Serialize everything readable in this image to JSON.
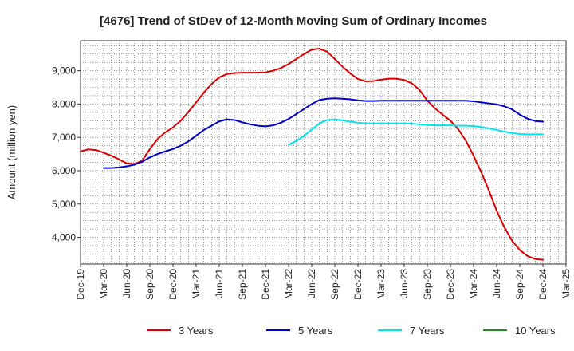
{
  "chart_data": {
    "type": "line",
    "title": "[4676]  Trend of StDev of 12-Month Moving Sum of Ordinary Incomes",
    "ylabel": "Amount (million yen)",
    "xlabel": "",
    "ylim": [
      3200,
      9900
    ],
    "x_range": [
      "2019-12",
      "2025-03"
    ],
    "x_ticks": [
      "Dec-19",
      "Mar-20",
      "Jun-20",
      "Sep-20",
      "Dec-20",
      "Mar-21",
      "Jun-21",
      "Sep-21",
      "Dec-21",
      "Mar-22",
      "Jun-22",
      "Sep-22",
      "Dec-22",
      "Mar-23",
      "Jun-23",
      "Sep-23",
      "Dec-23",
      "Mar-24",
      "Jun-24",
      "Sep-24",
      "Dec-24",
      "Mar-25"
    ],
    "y_ticks": [
      4000,
      5000,
      6000,
      7000,
      8000,
      9000
    ],
    "y_tick_labels": [
      "4,000",
      "5,000",
      "6,000",
      "7,000",
      "8,000",
      "9,000"
    ],
    "grid": true,
    "legend_position": "bottom",
    "series": [
      {
        "name": "3 Years",
        "color": "#dd0000",
        "points": [
          [
            "2019-12",
            6580
          ],
          [
            "2020-01",
            6640
          ],
          [
            "2020-02",
            6620
          ],
          [
            "2020-03",
            6540
          ],
          [
            "2020-04",
            6450
          ],
          [
            "2020-05",
            6340
          ],
          [
            "2020-06",
            6220
          ],
          [
            "2020-07",
            6200
          ],
          [
            "2020-08",
            6300
          ],
          [
            "2020-09",
            6650
          ],
          [
            "2020-10",
            6950
          ],
          [
            "2020-11",
            7150
          ],
          [
            "2020-12",
            7300
          ],
          [
            "2021-01",
            7500
          ],
          [
            "2021-02",
            7760
          ],
          [
            "2021-03",
            8050
          ],
          [
            "2021-04",
            8340
          ],
          [
            "2021-05",
            8600
          ],
          [
            "2021-06",
            8800
          ],
          [
            "2021-07",
            8900
          ],
          [
            "2021-08",
            8930
          ],
          [
            "2021-09",
            8940
          ],
          [
            "2021-10",
            8940
          ],
          [
            "2021-11",
            8940
          ],
          [
            "2021-12",
            8950
          ],
          [
            "2022-01",
            9000
          ],
          [
            "2022-02",
            9080
          ],
          [
            "2022-03",
            9200
          ],
          [
            "2022-04",
            9350
          ],
          [
            "2022-05",
            9500
          ],
          [
            "2022-06",
            9630
          ],
          [
            "2022-07",
            9660
          ],
          [
            "2022-08",
            9570
          ],
          [
            "2022-09",
            9350
          ],
          [
            "2022-10",
            9120
          ],
          [
            "2022-11",
            8920
          ],
          [
            "2022-12",
            8750
          ],
          [
            "2023-01",
            8680
          ],
          [
            "2023-02",
            8690
          ],
          [
            "2023-03",
            8730
          ],
          [
            "2023-04",
            8760
          ],
          [
            "2023-05",
            8760
          ],
          [
            "2023-06",
            8720
          ],
          [
            "2023-07",
            8620
          ],
          [
            "2023-08",
            8420
          ],
          [
            "2023-09",
            8100
          ],
          [
            "2023-10",
            7870
          ],
          [
            "2023-11",
            7680
          ],
          [
            "2023-12",
            7500
          ],
          [
            "2024-01",
            7250
          ],
          [
            "2024-02",
            6900
          ],
          [
            "2024-03",
            6450
          ],
          [
            "2024-04",
            5950
          ],
          [
            "2024-05",
            5400
          ],
          [
            "2024-06",
            4800
          ],
          [
            "2024-07",
            4300
          ],
          [
            "2024-08",
            3900
          ],
          [
            "2024-09",
            3620
          ],
          [
            "2024-10",
            3440
          ],
          [
            "2024-11",
            3350
          ],
          [
            "2024-12",
            3330
          ]
        ]
      },
      {
        "name": "5 Years",
        "color": "#0000cc",
        "points": [
          [
            "2020-03",
            6080
          ],
          [
            "2020-04",
            6080
          ],
          [
            "2020-05",
            6100
          ],
          [
            "2020-06",
            6130
          ],
          [
            "2020-07",
            6180
          ],
          [
            "2020-08",
            6270
          ],
          [
            "2020-09",
            6400
          ],
          [
            "2020-10",
            6500
          ],
          [
            "2020-11",
            6580
          ],
          [
            "2020-12",
            6650
          ],
          [
            "2021-01",
            6750
          ],
          [
            "2021-02",
            6880
          ],
          [
            "2021-03",
            7050
          ],
          [
            "2021-04",
            7220
          ],
          [
            "2021-05",
            7350
          ],
          [
            "2021-06",
            7480
          ],
          [
            "2021-07",
            7540
          ],
          [
            "2021-08",
            7520
          ],
          [
            "2021-09",
            7450
          ],
          [
            "2021-10",
            7390
          ],
          [
            "2021-11",
            7350
          ],
          [
            "2021-12",
            7330
          ],
          [
            "2022-01",
            7360
          ],
          [
            "2022-02",
            7440
          ],
          [
            "2022-03",
            7550
          ],
          [
            "2022-04",
            7700
          ],
          [
            "2022-05",
            7850
          ],
          [
            "2022-06",
            8000
          ],
          [
            "2022-07",
            8120
          ],
          [
            "2022-08",
            8160
          ],
          [
            "2022-09",
            8170
          ],
          [
            "2022-10",
            8160
          ],
          [
            "2022-11",
            8140
          ],
          [
            "2022-12",
            8110
          ],
          [
            "2023-01",
            8090
          ],
          [
            "2023-02",
            8090
          ],
          [
            "2023-03",
            8100
          ],
          [
            "2023-04",
            8100
          ],
          [
            "2023-05",
            8100
          ],
          [
            "2023-06",
            8100
          ],
          [
            "2023-07",
            8100
          ],
          [
            "2023-08",
            8100
          ],
          [
            "2023-09",
            8100
          ],
          [
            "2023-10",
            8100
          ],
          [
            "2023-11",
            8100
          ],
          [
            "2023-12",
            8100
          ],
          [
            "2024-01",
            8100
          ],
          [
            "2024-02",
            8100
          ],
          [
            "2024-03",
            8080
          ],
          [
            "2024-04",
            8050
          ],
          [
            "2024-05",
            8020
          ],
          [
            "2024-06",
            7990
          ],
          [
            "2024-07",
            7930
          ],
          [
            "2024-08",
            7840
          ],
          [
            "2024-09",
            7680
          ],
          [
            "2024-10",
            7560
          ],
          [
            "2024-11",
            7490
          ],
          [
            "2024-12",
            7470
          ]
        ]
      },
      {
        "name": "7 Years",
        "color": "#00e5ee",
        "points": [
          [
            "2022-03",
            6780
          ],
          [
            "2022-04",
            6890
          ],
          [
            "2022-05",
            7050
          ],
          [
            "2022-06",
            7230
          ],
          [
            "2022-07",
            7420
          ],
          [
            "2022-08",
            7520
          ],
          [
            "2022-09",
            7540
          ],
          [
            "2022-10",
            7510
          ],
          [
            "2022-11",
            7470
          ],
          [
            "2022-12",
            7440
          ],
          [
            "2023-01",
            7420
          ],
          [
            "2023-02",
            7420
          ],
          [
            "2023-03",
            7420
          ],
          [
            "2023-04",
            7420
          ],
          [
            "2023-05",
            7420
          ],
          [
            "2023-06",
            7420
          ],
          [
            "2023-07",
            7410
          ],
          [
            "2023-08",
            7390
          ],
          [
            "2023-09",
            7370
          ],
          [
            "2023-10",
            7360
          ],
          [
            "2023-11",
            7360
          ],
          [
            "2023-12",
            7360
          ],
          [
            "2024-01",
            7350
          ],
          [
            "2024-02",
            7350
          ],
          [
            "2024-03",
            7340
          ],
          [
            "2024-04",
            7310
          ],
          [
            "2024-05",
            7270
          ],
          [
            "2024-06",
            7220
          ],
          [
            "2024-07",
            7170
          ],
          [
            "2024-08",
            7130
          ],
          [
            "2024-09",
            7100
          ],
          [
            "2024-10",
            7090
          ],
          [
            "2024-11",
            7090
          ],
          [
            "2024-12",
            7090
          ]
        ]
      },
      {
        "name": "10 Years",
        "color": "#228b22",
        "points": []
      }
    ]
  }
}
